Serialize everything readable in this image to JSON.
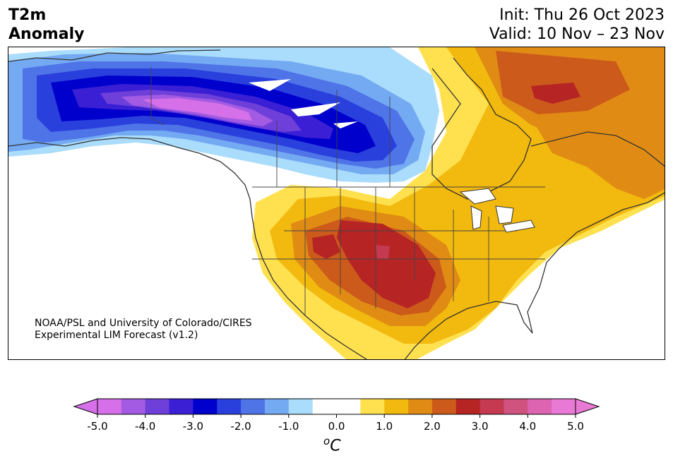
{
  "title": {
    "left_line1": "T2m",
    "left_line2": "Anomaly",
    "init": "Init: Thu 26 Oct 2023",
    "valid": "Valid: 10 Nov – 23 Nov"
  },
  "credit": {
    "line1": "NOAA/PSL and University of Colorado/CIRES",
    "line2": "Experimental LIM Forecast (v1.2)"
  },
  "colorbar": {
    "colors": [
      "#d670e8",
      "#a25be2",
      "#6f3fda",
      "#3a1fd4",
      "#0000cc",
      "#2a40dd",
      "#4f74e8",
      "#74aaf2",
      "#aadcfb",
      "#ffffff",
      "#ffffff",
      "#ffe14f",
      "#f2b90e",
      "#e08c14",
      "#cc5a1a",
      "#b62424",
      "#c53a50",
      "#d0527e",
      "#dc64b0",
      "#e87ad6"
    ],
    "tick_labels": [
      "-5.0",
      "-4.0",
      "-3.0",
      "-2.0",
      "-1.0",
      "0.0",
      "1.0",
      "2.0",
      "3.0",
      "4.0",
      "5.0"
    ],
    "unit_base": "o",
    "unit": "C"
  }
}
